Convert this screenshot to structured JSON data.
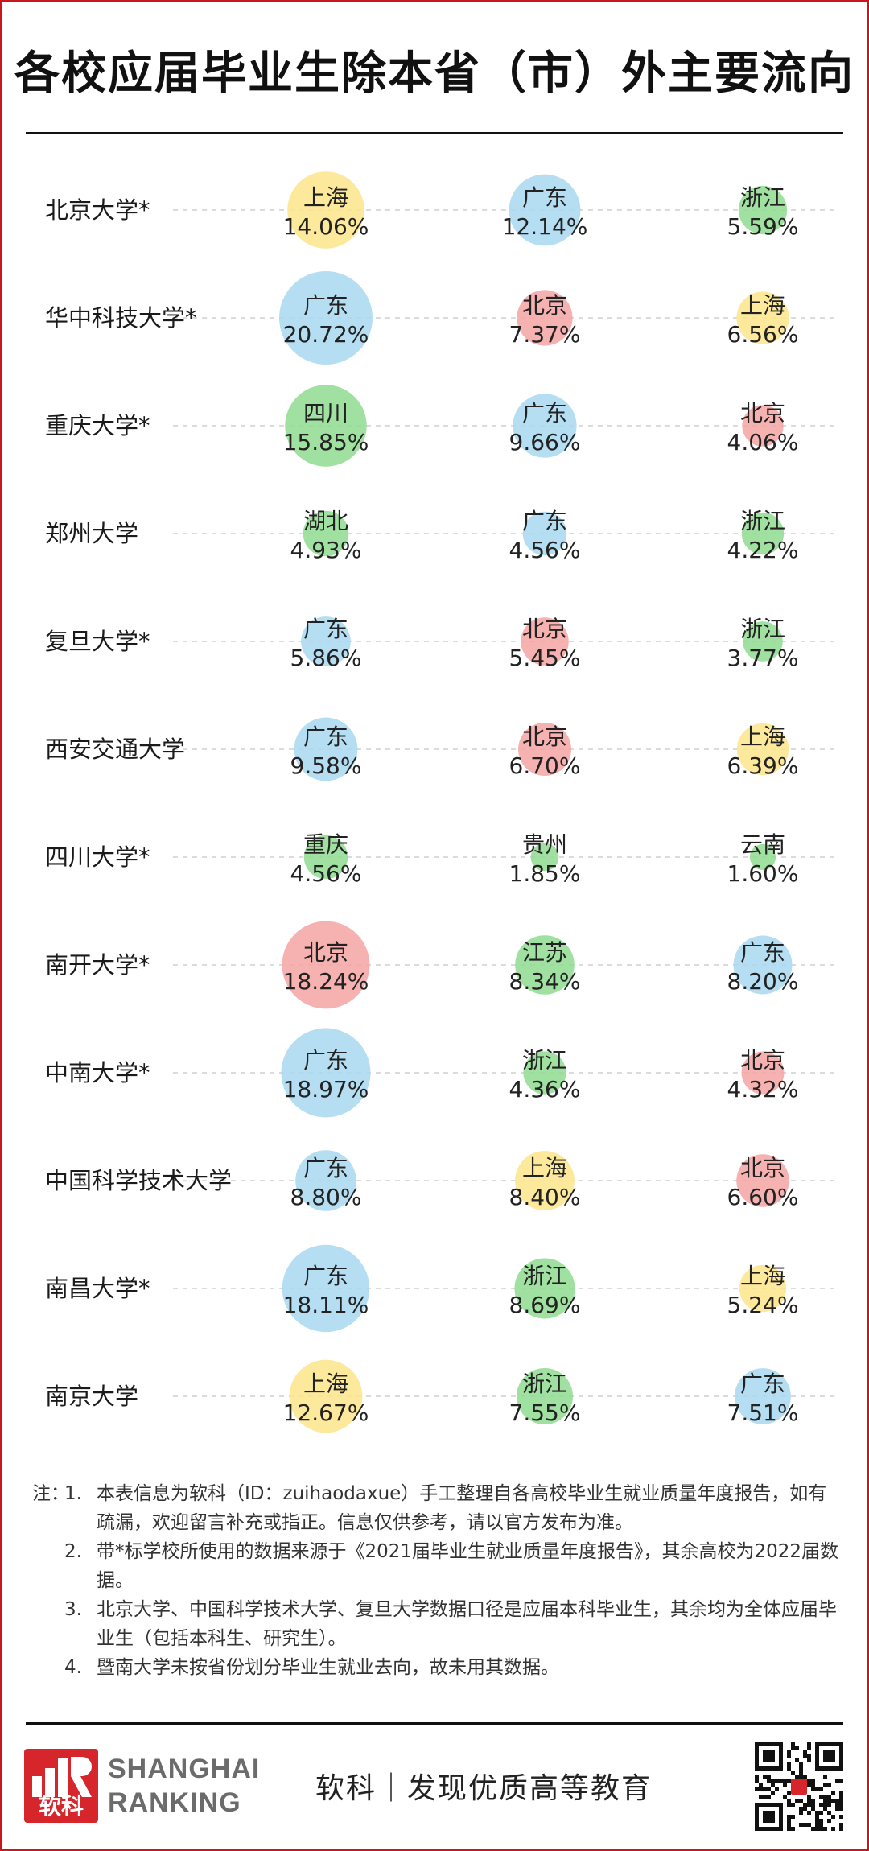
{
  "title": "各校应届毕业生除本省（市）外主要流向",
  "colors": {
    "广东": "#a8d8f0",
    "北京": "#f5a3a3",
    "上海": "#fbe58a",
    "浙江": "#8fdb8f",
    "四川": "#8fdb8f",
    "湖北": "#8fdb8f",
    "重庆": "#8fdb8f",
    "江苏": "#8fdb8f",
    "贵州": "#8fdb8f",
    "云南": "#8fdb8f"
  },
  "chart_data": {
    "type": "bubble-table",
    "unit": "%",
    "rows": [
      {
        "school": "北京大学*",
        "dest": [
          {
            "region": "上海",
            "value": 14.06,
            "label": "14.06%"
          },
          {
            "region": "广东",
            "value": 12.14,
            "label": "12.14%"
          },
          {
            "region": "浙江",
            "value": 5.59,
            "label": "5.59%"
          }
        ]
      },
      {
        "school": "华中科技大学*",
        "dest": [
          {
            "region": "广东",
            "value": 20.72,
            "label": "20.72%"
          },
          {
            "region": "北京",
            "value": 7.37,
            "label": "7.37%"
          },
          {
            "region": "上海",
            "value": 6.56,
            "label": "6.56%"
          }
        ]
      },
      {
        "school": "重庆大学*",
        "dest": [
          {
            "region": "四川",
            "value": 15.85,
            "label": "15.85%"
          },
          {
            "region": "广东",
            "value": 9.66,
            "label": "9.66%"
          },
          {
            "region": "北京",
            "value": 4.06,
            "label": "4.06%"
          }
        ]
      },
      {
        "school": "郑州大学",
        "dest": [
          {
            "region": "湖北",
            "value": 4.93,
            "label": "4.93%"
          },
          {
            "region": "广东",
            "value": 4.56,
            "label": "4.56%"
          },
          {
            "region": "浙江",
            "value": 4.22,
            "label": "4.22%"
          }
        ]
      },
      {
        "school": "复旦大学*",
        "dest": [
          {
            "region": "广东",
            "value": 5.86,
            "label": "5.86%"
          },
          {
            "region": "北京",
            "value": 5.45,
            "label": "5.45%"
          },
          {
            "region": "浙江",
            "value": 3.77,
            "label": "3.77%"
          }
        ]
      },
      {
        "school": "西安交通大学",
        "dest": [
          {
            "region": "广东",
            "value": 9.58,
            "label": "9.58%"
          },
          {
            "region": "北京",
            "value": 6.7,
            "label": "6.70%"
          },
          {
            "region": "上海",
            "value": 6.39,
            "label": "6.39%"
          }
        ]
      },
      {
        "school": "四川大学*",
        "dest": [
          {
            "region": "重庆",
            "value": 4.56,
            "label": "4.56%"
          },
          {
            "region": "贵州",
            "value": 1.85,
            "label": "1.85%"
          },
          {
            "region": "云南",
            "value": 1.6,
            "label": "1.60%"
          }
        ]
      },
      {
        "school": "南开大学*",
        "dest": [
          {
            "region": "北京",
            "value": 18.24,
            "label": "18.24%"
          },
          {
            "region": "江苏",
            "value": 8.34,
            "label": "8.34%"
          },
          {
            "region": "广东",
            "value": 8.2,
            "label": "8.20%"
          }
        ]
      },
      {
        "school": "中南大学*",
        "dest": [
          {
            "region": "广东",
            "value": 18.97,
            "label": "18.97%"
          },
          {
            "region": "浙江",
            "value": 4.36,
            "label": "4.36%"
          },
          {
            "region": "北京",
            "value": 4.32,
            "label": "4.32%"
          }
        ]
      },
      {
        "school": "中国科学技术大学",
        "dest": [
          {
            "region": "广东",
            "value": 8.8,
            "label": "8.80%"
          },
          {
            "region": "上海",
            "value": 8.4,
            "label": "8.40%"
          },
          {
            "region": "北京",
            "value": 6.6,
            "label": "6.60%"
          }
        ]
      },
      {
        "school": "南昌大学*",
        "dest": [
          {
            "region": "广东",
            "value": 18.11,
            "label": "18.11%"
          },
          {
            "region": "浙江",
            "value": 8.69,
            "label": "8.69%"
          },
          {
            "region": "上海",
            "value": 5.24,
            "label": "5.24%"
          }
        ]
      },
      {
        "school": "南京大学",
        "dest": [
          {
            "region": "上海",
            "value": 12.67,
            "label": "12.67%"
          },
          {
            "region": "浙江",
            "value": 7.55,
            "label": "7.55%"
          },
          {
            "region": "广东",
            "value": 7.51,
            "label": "7.51%"
          }
        ]
      }
    ]
  },
  "notes": {
    "lead": "注：",
    "items": [
      {
        "num": "1.",
        "text": "本表信息为软科（ID：zuihaodaxue）手工整理自各高校毕业生就业质量年度报告，如有疏漏，欢迎留言补充或指正。信息仅供参考，请以官方发布为准。"
      },
      {
        "num": "2.",
        "text": "带*标学校所使用的数据来源于《2021届毕业生就业质量年度报告》，其余高校为2022届数据。"
      },
      {
        "num": "3.",
        "text": "北京大学、中国科学技术大学、复旦大学数据口径是应届本科毕业生，其余均为全体应届毕业生（包括本科生、研究生）。"
      },
      {
        "num": "4.",
        "text": "暨南大学未按省份划分毕业生就业去向，故未用其数据。"
      }
    ]
  },
  "footer": {
    "logo_chars": "软科",
    "logo_line1": "SHANGHAI",
    "logo_line2": "RANKING",
    "slogan": "软科｜发现优质高等教育",
    "qr_icon": "qr-code-icon"
  }
}
